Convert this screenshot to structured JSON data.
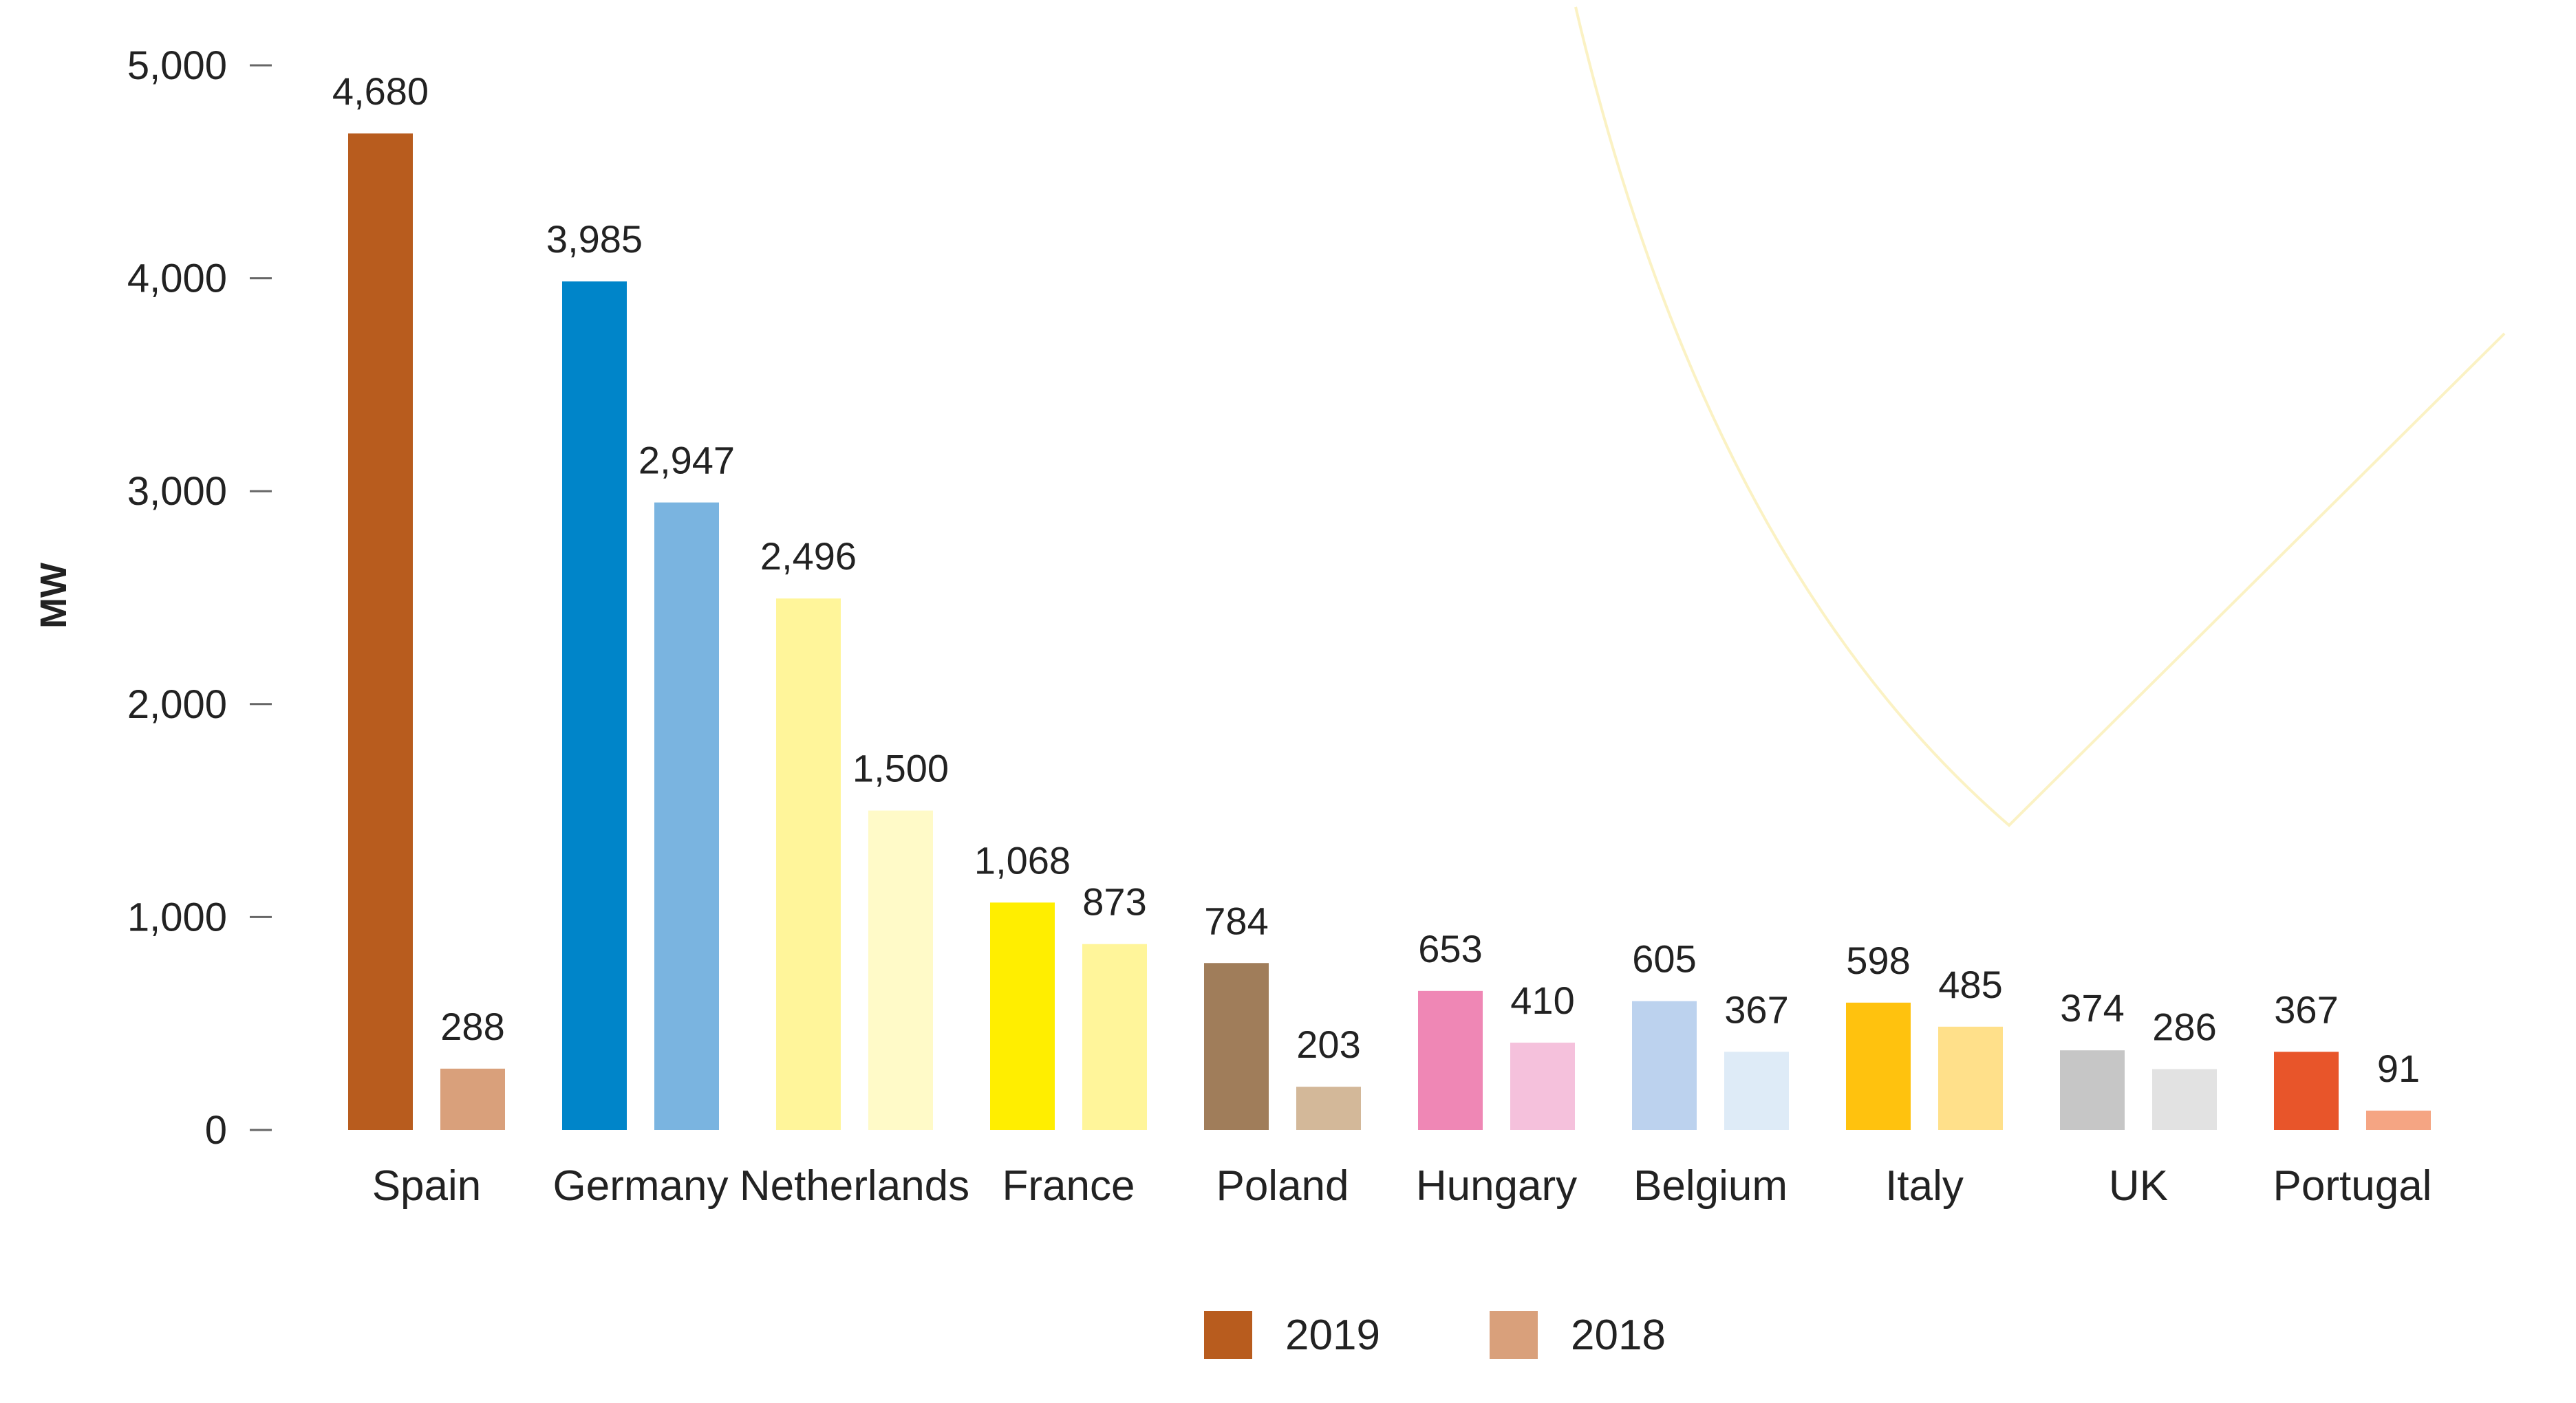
{
  "chart_data": {
    "type": "bar",
    "title": "",
    "xlabel": "",
    "ylabel": "MW",
    "ylim": [
      0,
      5000
    ],
    "yticks": [
      0,
      1000,
      2000,
      3000,
      4000,
      5000
    ],
    "ytick_labels": [
      "0",
      "1,000",
      "2,000",
      "3,000",
      "4,000",
      "5,000"
    ],
    "grid": false,
    "legend_position": "bottom-center",
    "categories": [
      "Spain",
      "Germany",
      "Netherlands",
      "France",
      "Poland",
      "Hungary",
      "Belgium",
      "Italy",
      "UK",
      "Portugal"
    ],
    "series": [
      {
        "name": "2019",
        "values": [
          4680,
          3985,
          2496,
          1068,
          784,
          653,
          605,
          598,
          374,
          367
        ],
        "labels": [
          "4,680",
          "3,985",
          "2,496",
          "1,068",
          "784",
          "653",
          "605",
          "598",
          "374",
          "367"
        ],
        "colors": [
          "#b85c1e",
          "#0085c9",
          "#fff59a",
          "#ffee00",
          "#a07d5a",
          "#ef87b5",
          "#bcd2ee",
          "#ffc20e",
          "#c6c6c6",
          "#e8552a"
        ],
        "legend_color": "#b85c1e"
      },
      {
        "name": "2018",
        "values": [
          288,
          2947,
          1500,
          873,
          203,
          410,
          367,
          485,
          286,
          91
        ],
        "labels": [
          "288",
          "2,947",
          "1,500",
          "873",
          "203",
          "410",
          "367",
          "485",
          "286",
          "91"
        ],
        "colors": [
          "#d9a07b",
          "#7ab4e0",
          "#fffac8",
          "#fff59a",
          "#d3b899",
          "#f5c1dc",
          "#deebf7",
          "#ffe08a",
          "#e2e2e2",
          "#f5a583"
        ],
        "legend_color": "#d9a07b"
      }
    ]
  }
}
